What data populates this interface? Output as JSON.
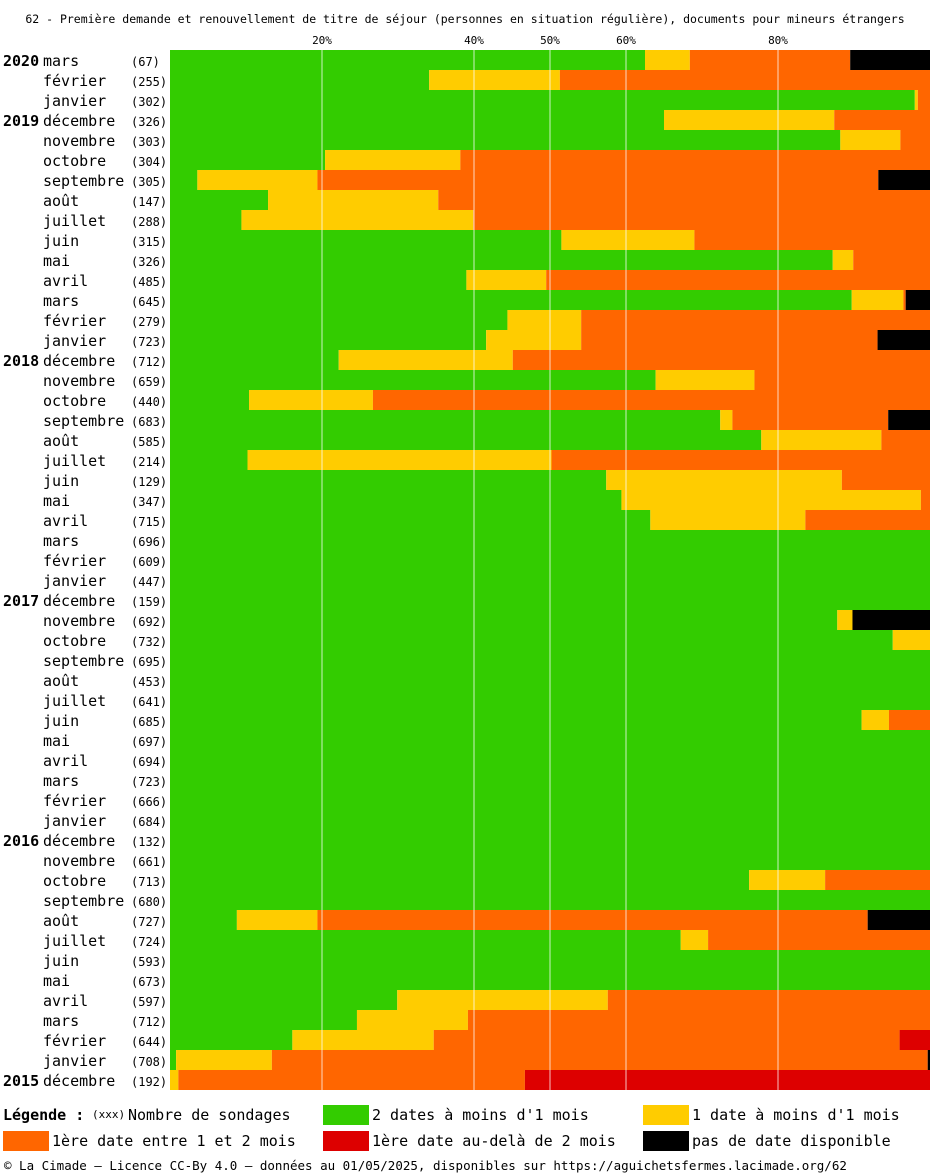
{
  "title": "62 - Première demande et renouvellement de titre de séjour (personnes en situation régulière), documents pour mineurs étrangers",
  "legend": {
    "title": "Légende :",
    "count_symbol": "(xxx)",
    "count_label": "Nombre de sondages"
  },
  "footer": "© La Cimade — Licence CC-By 4.0 — données au 01/05/2025, disponibles sur https://aguichetsfermes.lacimade.org/62",
  "chart_data": {
    "type": "bar",
    "orientation": "horizontal",
    "stacked": true,
    "normalized_percent": true,
    "xlim": [
      0,
      100
    ],
    "x_ticks": [
      20,
      40,
      50,
      60,
      80
    ],
    "x_tick_labels": [
      "20%",
      "40%",
      "50%",
      "60%",
      "80%"
    ],
    "grid": true,
    "legend_placement": "bottom",
    "series": [
      {
        "name": "2 dates à moins d'1 mois",
        "color": "#33cc00"
      },
      {
        "name": "1 date à moins d'1 mois",
        "color": "#ffcc00"
      },
      {
        "name": "1ère date entre 1 et 2 mois",
        "color": "#ff6600"
      },
      {
        "name": "1ère date au-delà de 2 mois",
        "color": "#dd0000"
      },
      {
        "name": "pas de date disponible",
        "color": "#000000"
      }
    ],
    "rows": [
      {
        "year": "2020",
        "month": "mars",
        "count": "(67)",
        "values": [
          62.5,
          5.9,
          21.1,
          0,
          10.5
        ]
      },
      {
        "year": "",
        "month": "février",
        "count": "(255)",
        "values": [
          34.1,
          17.2,
          48.7,
          0,
          0
        ]
      },
      {
        "year": "",
        "month": "janvier",
        "count": "(302)",
        "values": [
          98.0,
          0.4,
          1.6,
          0,
          0
        ]
      },
      {
        "year": "2019",
        "month": "décembre",
        "count": "(326)",
        "values": [
          65.0,
          22.4,
          12.6,
          0,
          0
        ]
      },
      {
        "year": "",
        "month": "novembre",
        "count": "(303)",
        "values": [
          88.2,
          7.9,
          3.9,
          0,
          0
        ]
      },
      {
        "year": "",
        "month": "octobre",
        "count": "(304)",
        "values": [
          20.4,
          17.8,
          61.8,
          0,
          0
        ]
      },
      {
        "year": "",
        "month": "septembre",
        "count": "(305)",
        "values": [
          3.6,
          15.8,
          73.8,
          0,
          6.8
        ]
      },
      {
        "year": "",
        "month": "août",
        "count": "(147)",
        "values": [
          12.9,
          22.4,
          64.7,
          0,
          0
        ]
      },
      {
        "year": "",
        "month": "juillet",
        "count": "(288)",
        "values": [
          9.4,
          30.5,
          60.1,
          0,
          0
        ]
      },
      {
        "year": "",
        "month": "juin",
        "count": "(315)",
        "values": [
          51.5,
          17.5,
          31.0,
          0,
          0
        ]
      },
      {
        "year": "",
        "month": "mai",
        "count": "(326)",
        "values": [
          87.2,
          2.7,
          10.1,
          0,
          0
        ]
      },
      {
        "year": "",
        "month": "avril",
        "count": "(485)",
        "values": [
          39.0,
          10.5,
          50.5,
          0,
          0
        ]
      },
      {
        "year": "",
        "month": "mars",
        "count": "(645)",
        "values": [
          89.7,
          6.8,
          0.3,
          0,
          3.2
        ]
      },
      {
        "year": "",
        "month": "février",
        "count": "(279)",
        "values": [
          44.4,
          9.7,
          45.9,
          0,
          0
        ]
      },
      {
        "year": "",
        "month": "janvier",
        "count": "(723)",
        "values": [
          41.6,
          12.5,
          39.0,
          0,
          6.9
        ]
      },
      {
        "year": "2018",
        "month": "décembre",
        "count": "(712)",
        "values": [
          22.2,
          22.9,
          54.9,
          0,
          0
        ]
      },
      {
        "year": "",
        "month": "novembre",
        "count": "(659)",
        "values": [
          63.9,
          13.0,
          23.1,
          0,
          0
        ]
      },
      {
        "year": "",
        "month": "octobre",
        "count": "(440)",
        "values": [
          10.4,
          16.3,
          73.3,
          0,
          0
        ]
      },
      {
        "year": "",
        "month": "septembre",
        "count": "(683)",
        "values": [
          72.4,
          1.6,
          20.5,
          0,
          5.5
        ]
      },
      {
        "year": "",
        "month": "août",
        "count": "(585)",
        "values": [
          77.8,
          15.8,
          6.4,
          0,
          0
        ]
      },
      {
        "year": "",
        "month": "juillet",
        "count": "(214)",
        "values": [
          10.2,
          40.0,
          49.8,
          0,
          0
        ]
      },
      {
        "year": "",
        "month": "juin",
        "count": "(129)",
        "values": [
          57.4,
          31.0,
          11.6,
          0,
          0
        ]
      },
      {
        "year": "",
        "month": "mai",
        "count": "(347)",
        "values": [
          59.4,
          39.4,
          1.2,
          0,
          0
        ]
      },
      {
        "year": "",
        "month": "avril",
        "count": "(715)",
        "values": [
          63.2,
          20.4,
          16.4,
          0,
          0
        ]
      },
      {
        "year": "",
        "month": "mars",
        "count": "(696)",
        "values": [
          100,
          0,
          0,
          0,
          0
        ]
      },
      {
        "year": "",
        "month": "février",
        "count": "(609)",
        "values": [
          100,
          0,
          0,
          0,
          0
        ]
      },
      {
        "year": "",
        "month": "janvier",
        "count": "(447)",
        "values": [
          100,
          0,
          0,
          0,
          0
        ]
      },
      {
        "year": "2017",
        "month": "décembre",
        "count": "(159)",
        "values": [
          100,
          0,
          0,
          0,
          0
        ]
      },
      {
        "year": "",
        "month": "novembre",
        "count": "(692)",
        "values": [
          87.8,
          2.0,
          0,
          0,
          10.2
        ]
      },
      {
        "year": "",
        "month": "octobre",
        "count": "(732)",
        "values": [
          95.1,
          4.9,
          0,
          0,
          0
        ]
      },
      {
        "year": "",
        "month": "septembre",
        "count": "(695)",
        "values": [
          100,
          0,
          0,
          0,
          0
        ]
      },
      {
        "year": "",
        "month": "août",
        "count": "(453)",
        "values": [
          100,
          0,
          0,
          0,
          0
        ]
      },
      {
        "year": "",
        "month": "juillet",
        "count": "(641)",
        "values": [
          100,
          0,
          0,
          0,
          0
        ]
      },
      {
        "year": "",
        "month": "juin",
        "count": "(685)",
        "values": [
          91.0,
          3.6,
          5.4,
          0,
          0
        ]
      },
      {
        "year": "",
        "month": "mai",
        "count": "(697)",
        "values": [
          100,
          0,
          0,
          0,
          0
        ]
      },
      {
        "year": "",
        "month": "avril",
        "count": "(694)",
        "values": [
          100,
          0,
          0,
          0,
          0
        ]
      },
      {
        "year": "",
        "month": "mars",
        "count": "(723)",
        "values": [
          100,
          0,
          0,
          0,
          0
        ]
      },
      {
        "year": "",
        "month": "février",
        "count": "(666)",
        "values": [
          100,
          0,
          0,
          0,
          0
        ]
      },
      {
        "year": "",
        "month": "janvier",
        "count": "(684)",
        "values": [
          100,
          0,
          0,
          0,
          0
        ]
      },
      {
        "year": "2016",
        "month": "décembre",
        "count": "(132)",
        "values": [
          100,
          0,
          0,
          0,
          0
        ]
      },
      {
        "year": "",
        "month": "novembre",
        "count": "(661)",
        "values": [
          100,
          0,
          0,
          0,
          0
        ]
      },
      {
        "year": "",
        "month": "octobre",
        "count": "(713)",
        "values": [
          76.2,
          10.0,
          13.8,
          0,
          0
        ]
      },
      {
        "year": "",
        "month": "septembre",
        "count": "(680)",
        "values": [
          100,
          0,
          0,
          0,
          0
        ]
      },
      {
        "year": "",
        "month": "août",
        "count": "(727)",
        "values": [
          8.8,
          10.6,
          72.4,
          0,
          8.2
        ]
      },
      {
        "year": "",
        "month": "juillet",
        "count": "(724)",
        "values": [
          67.2,
          3.6,
          29.2,
          0,
          0
        ]
      },
      {
        "year": "",
        "month": "juin",
        "count": "(593)",
        "values": [
          100,
          0,
          0,
          0,
          0
        ]
      },
      {
        "year": "",
        "month": "mai",
        "count": "(673)",
        "values": [
          100,
          0,
          0,
          0,
          0
        ]
      },
      {
        "year": "",
        "month": "avril",
        "count": "(597)",
        "values": [
          29.9,
          27.7,
          42.4,
          0,
          0
        ]
      },
      {
        "year": "",
        "month": "mars",
        "count": "(712)",
        "values": [
          24.6,
          14.6,
          60.8,
          0,
          0
        ]
      },
      {
        "year": "",
        "month": "février",
        "count": "(644)",
        "values": [
          16.1,
          18.6,
          61.3,
          4.0,
          0
        ]
      },
      {
        "year": "",
        "month": "janvier",
        "count": "(708)",
        "values": [
          0.8,
          12.6,
          86.3,
          0,
          0.3
        ]
      },
      {
        "year": "2015",
        "month": "décembre",
        "count": "(192)",
        "values": [
          0,
          1.1,
          45.6,
          53.3,
          0
        ]
      }
    ]
  }
}
